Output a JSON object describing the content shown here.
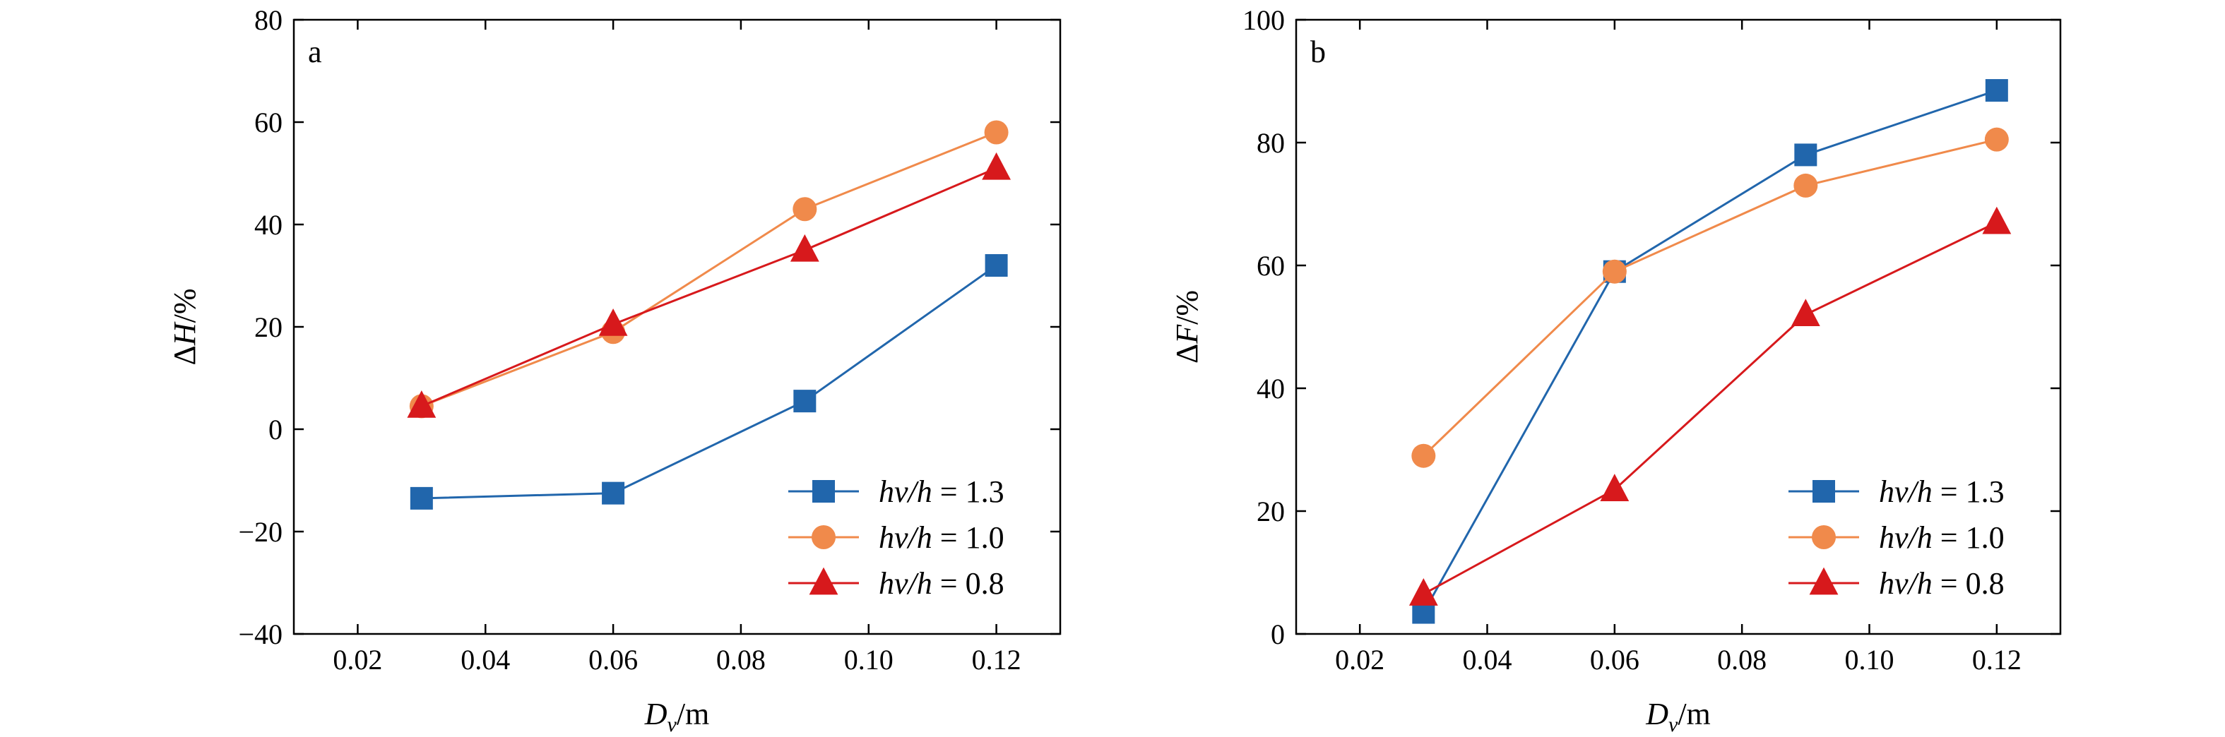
{
  "chart_data": [
    {
      "type": "line",
      "panel_label": "a",
      "xlabel": {
        "main": "D",
        "sub": "v",
        "unit": "/m"
      },
      "ylabel": {
        "delta": "Δ",
        "main": "H",
        "unit": "/%"
      },
      "xlim": [
        0.01,
        0.13
      ],
      "ylim": [
        -40,
        80
      ],
      "xticks": [
        0.02,
        0.04,
        0.06,
        0.08,
        0.1,
        0.12
      ],
      "xtick_labels": [
        "0.02",
        "0.04",
        "0.06",
        "0.08",
        "0.10",
        "0.12"
      ],
      "yticks": [
        -40,
        -20,
        0,
        20,
        40,
        60,
        80
      ],
      "ytick_labels": [
        "−40",
        "−20",
        "0",
        "20",
        "40",
        "60",
        "80"
      ],
      "legend_position": "bottom-right",
      "x": [
        0.03,
        0.06,
        0.09,
        0.12
      ],
      "series": [
        {
          "name": "hv/h = 1.3",
          "label_italic": "hv/h",
          "label_rest": " = 1.3",
          "marker": "square",
          "color": "#2166ac",
          "values": [
            -13.5,
            -12.5,
            5.5,
            32
          ]
        },
        {
          "name": "hv/h = 1.0",
          "label_italic": "hv/h",
          "label_rest": " = 1.0",
          "marker": "circle",
          "color": "#f08a4b",
          "values": [
            4.5,
            19,
            43,
            58
          ]
        },
        {
          "name": "hv/h = 0.8",
          "label_italic": "hv/h",
          "label_rest": " = 0.8",
          "marker": "triangle",
          "color": "#d7191c",
          "values": [
            4.5,
            20.5,
            35,
            51
          ]
        }
      ]
    },
    {
      "type": "line",
      "panel_label": "b",
      "xlabel": {
        "main": "D",
        "sub": "v",
        "unit": "/m"
      },
      "ylabel": {
        "delta": "Δ",
        "main": "F",
        "unit": "/%"
      },
      "xlim": [
        0.01,
        0.13
      ],
      "ylim": [
        0,
        100
      ],
      "xticks": [
        0.02,
        0.04,
        0.06,
        0.08,
        0.1,
        0.12
      ],
      "xtick_labels": [
        "0.02",
        "0.04",
        "0.06",
        "0.08",
        "0.10",
        "0.12"
      ],
      "yticks": [
        0,
        20,
        40,
        60,
        80,
        100
      ],
      "ytick_labels": [
        "0",
        "20",
        "40",
        "60",
        "80",
        "100"
      ],
      "legend_position": "bottom-right",
      "x": [
        0.03,
        0.06,
        0.09,
        0.12
      ],
      "series": [
        {
          "name": "hv/h = 1.3",
          "label_italic": "hv/h",
          "label_rest": " = 1.3",
          "marker": "square",
          "color": "#2166ac",
          "values": [
            3.5,
            59,
            78,
            88.5
          ]
        },
        {
          "name": "hv/h = 1.0",
          "label_italic": "hv/h",
          "label_rest": " = 1.0",
          "marker": "circle",
          "color": "#f08a4b",
          "values": [
            29,
            59,
            73,
            80.5
          ]
        },
        {
          "name": "hv/h = 0.8",
          "label_italic": "hv/h",
          "label_rest": " = 0.8",
          "marker": "triangle",
          "color": "#d7191c",
          "values": [
            6.5,
            23.5,
            52,
            67
          ]
        }
      ]
    }
  ]
}
